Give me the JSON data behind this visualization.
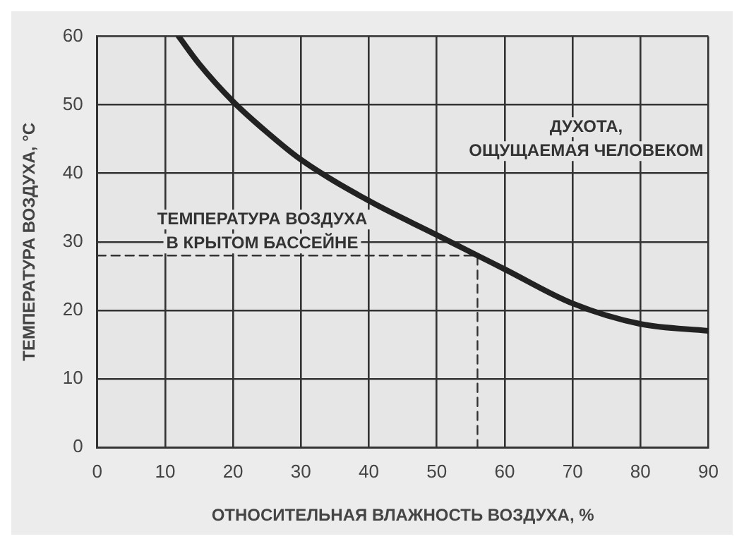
{
  "chart_data": {
    "type": "line",
    "xlabel": "ОТНОСИТЕЛЬНАЯ ВЛАЖНОСТЬ ВОЗДУХА, %",
    "ylabel": "ТЕМПЕРАТУРА ВОЗДУХА, °C",
    "series": [
      {
        "color": "#222222",
        "x": [
          12,
          15,
          20,
          25,
          30,
          40,
          50,
          56,
          60,
          70,
          80,
          90
        ],
        "values": [
          60,
          56,
          50.5,
          46,
          42,
          36,
          31,
          28,
          26,
          21,
          18,
          17
        ]
      },
      {
        "color": "#333333",
        "line_style": "dashed",
        "x": [
          0,
          56,
          56
        ],
        "values": [
          28,
          28,
          0
        ]
      }
    ],
    "xlim": [
      0,
      90
    ],
    "xticks": [
      0,
      10,
      20,
      30,
      40,
      50,
      60,
      70,
      80,
      90
    ],
    "ylim": [
      0,
      60
    ],
    "yticks": [
      0,
      10,
      20,
      30,
      40,
      50,
      60
    ],
    "grid": true,
    "marker": "none",
    "annotations": [
      "ДУХОТА,\nОЩУЩАЕМАЯ ЧЕЛОВЕКОМ",
      "ТЕМПЕРАТУРА ВОЗДУХА\nВ КРЫТОМ БАССЕЙНЕ"
    ]
  }
}
